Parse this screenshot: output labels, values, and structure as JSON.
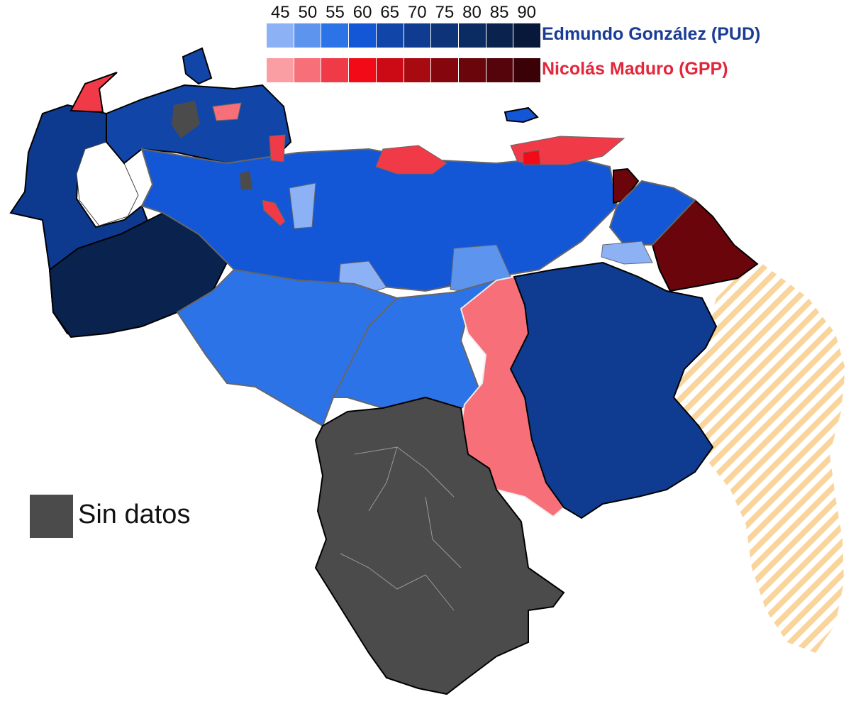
{
  "legend": {
    "ticks": [
      "45",
      "50",
      "55",
      "60",
      "65",
      "70",
      "75",
      "80",
      "85",
      "90"
    ],
    "blue_colors": [
      "#8db1f5",
      "#5d94ee",
      "#2d73e8",
      "#1457d6",
      "#1146a8",
      "#0f3c90",
      "#0e3379",
      "#0b2b63",
      "#0a224e",
      "#07183a"
    ],
    "red_colors": [
      "#fb9ea4",
      "#f76f78",
      "#f03a48",
      "#f20b17",
      "#cc0a15",
      "#a80a12",
      "#85070d",
      "#6a060b",
      "#54040a",
      "#3a0207"
    ],
    "blue_label": "Edmundo González (PUD)",
    "red_label": "Nicolás Maduro (GPP)",
    "nodata_label": "Sin datos"
  },
  "colors": {
    "nodata": "#4b4b4b",
    "claimed_stripe": "#f7c77a",
    "border_state": "#6a6a6a",
    "outline": "#000000"
  }
}
